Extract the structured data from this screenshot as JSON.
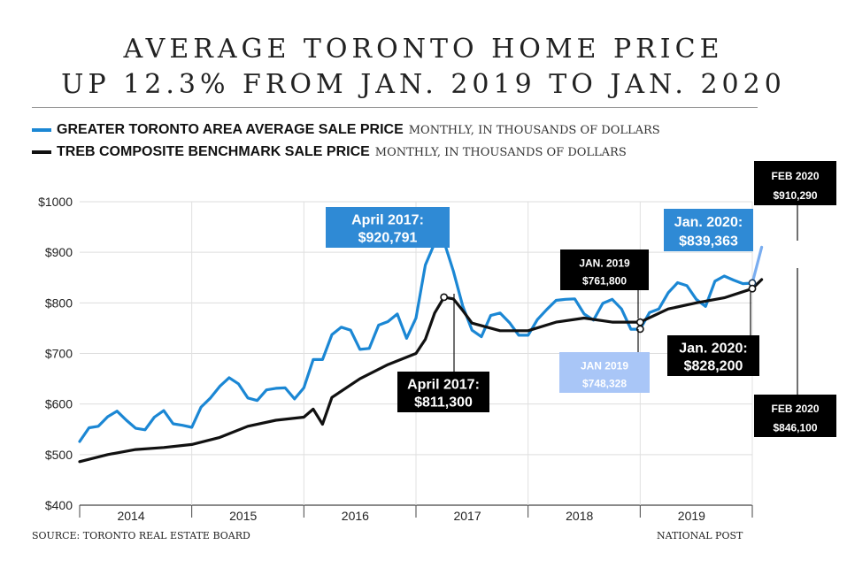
{
  "title_line1": "AVERAGE TORONTO HOME PRICE",
  "title_line2": "UP 12.3% FROM JAN. 2019 TO JAN. 2020",
  "legend": [
    {
      "name": "GREATER TORONTO AREA AVERAGE SALE PRICE",
      "unit": "MONTHLY, IN THOUSANDS OF DOLLARS",
      "color": "#1b87d4"
    },
    {
      "name": "TREB COMPOSITE BENCHMARK SALE PRICE",
      "unit": "MONTHLY, IN THOUSANDS OF DOLLARS",
      "color": "#111111"
    }
  ],
  "source": "SOURCE: TORONTO REAL ESTATE BOARD",
  "publisher": "NATIONAL POST",
  "chart_data": {
    "type": "line",
    "ylim": [
      400,
      1000
    ],
    "y_ticks": [
      400,
      500,
      600,
      700,
      800,
      900,
      1000
    ],
    "y_tick_labels": [
      "$400",
      "$500",
      "$600",
      "$700",
      "$800",
      "$900",
      "$1000"
    ],
    "x_range": [
      "2014-01",
      "2020-02"
    ],
    "year_labels": [
      "2014",
      "2015",
      "2016",
      "2017",
      "2018",
      "2019"
    ],
    "series": [
      {
        "name": "GREATER TORONTO AREA AVERAGE SALE PRICE",
        "color": "#1b87d4",
        "x": [
          "2014-01",
          "2014-02",
          "2014-03",
          "2014-04",
          "2014-05",
          "2014-06",
          "2014-07",
          "2014-08",
          "2014-09",
          "2014-10",
          "2014-11",
          "2014-12",
          "2015-01",
          "2015-02",
          "2015-03",
          "2015-04",
          "2015-05",
          "2015-06",
          "2015-07",
          "2015-08",
          "2015-09",
          "2015-10",
          "2015-11",
          "2015-12",
          "2016-01",
          "2016-02",
          "2016-03",
          "2016-04",
          "2016-05",
          "2016-06",
          "2016-07",
          "2016-08",
          "2016-09",
          "2016-10",
          "2016-11",
          "2016-12",
          "2017-01",
          "2017-02",
          "2017-03",
          "2017-04",
          "2017-05",
          "2017-06",
          "2017-07",
          "2017-08",
          "2017-09",
          "2017-10",
          "2017-11",
          "2017-12",
          "2018-01",
          "2018-02",
          "2018-03",
          "2018-04",
          "2018-05",
          "2018-06",
          "2018-07",
          "2018-08",
          "2018-09",
          "2018-10",
          "2018-11",
          "2018-12",
          "2019-01",
          "2019-02",
          "2019-03",
          "2019-04",
          "2019-05",
          "2019-06",
          "2019-07",
          "2019-08",
          "2019-09",
          "2019-10",
          "2019-11",
          "2019-12",
          "2020-01"
        ],
        "values": [
          526,
          553,
          556,
          575,
          586,
          568,
          552,
          549,
          574,
          587,
          561,
          558,
          554,
          594,
          612,
          635,
          652,
          640,
          612,
          607,
          628,
          631,
          632,
          610,
          632,
          688,
          688,
          737,
          752,
          746,
          708,
          710,
          756,
          763,
          778,
          730,
          770,
          875,
          918,
          921,
          863,
          794,
          746,
          733,
          775,
          780,
          761,
          736,
          736,
          767,
          787,
          805,
          807,
          808,
          778,
          766,
          799,
          807,
          788,
          748,
          748,
          781,
          788,
          820,
          840,
          834,
          807,
          793,
          843,
          853,
          845,
          838,
          839
        ]
      },
      {
        "name": "GREATER TORONTO AREA AVERAGE SALE PRICE (FEB 2020)",
        "color": "#79adf0",
        "x": [
          "2020-01",
          "2020-02"
        ],
        "values": [
          839,
          910
        ]
      },
      {
        "name": "TREB COMPOSITE BENCHMARK SALE PRICE",
        "color": "#111111",
        "x": [
          "2014-01",
          "2014-04",
          "2014-07",
          "2014-10",
          "2015-01",
          "2015-04",
          "2015-07",
          "2015-10",
          "2016-01",
          "2016-02",
          "2016-03",
          "2016-04",
          "2016-07",
          "2016-10",
          "2017-01",
          "2017-02",
          "2017-03",
          "2017-04",
          "2017-05",
          "2017-06",
          "2017-07",
          "2017-10",
          "2018-01",
          "2018-04",
          "2018-07",
          "2018-10",
          "2019-01",
          "2019-04",
          "2019-07",
          "2019-10",
          "2020-01",
          "2020-02"
        ],
        "values": [
          486,
          500,
          510,
          514,
          520,
          534,
          556,
          568,
          574,
          590,
          560,
          613,
          650,
          678,
          700,
          728,
          780,
          811,
          808,
          785,
          760,
          745,
          745,
          762,
          770,
          762,
          762,
          788,
          800,
          810,
          828,
          846
        ]
      }
    ],
    "annotations": [
      {
        "text1": "April 2017:",
        "text2": "$920,791",
        "x": "2017-04",
        "y": 920.791,
        "style": "blue"
      },
      {
        "text1": "April 2017:",
        "text2": "$811,300",
        "x": "2017-04",
        "y": 811.3,
        "style": "black"
      },
      {
        "text1": "JAN. 2019",
        "text2": "$761,800",
        "x": "2019-01",
        "y": 761.8,
        "style": "black"
      },
      {
        "text1": "JAN 2019",
        "text2": "$748,328",
        "x": "2019-01",
        "y": 748.328,
        "style": "lightblue"
      },
      {
        "text1": "Jan. 2020:",
        "text2": "$839,363",
        "x": "2020-01",
        "y": 839.363,
        "style": "blue"
      },
      {
        "text1": "Jan. 2020:",
        "text2": "$828,200",
        "x": "2020-01",
        "y": 828.2,
        "style": "black"
      },
      {
        "text1": "FEB 2020",
        "text2": "$910,290",
        "x": "2020-02",
        "y": 910.29,
        "style": "black"
      },
      {
        "text1": "FEB 2020",
        "text2": "$846,100",
        "x": "2020-02",
        "y": 846.1,
        "style": "black"
      }
    ]
  }
}
